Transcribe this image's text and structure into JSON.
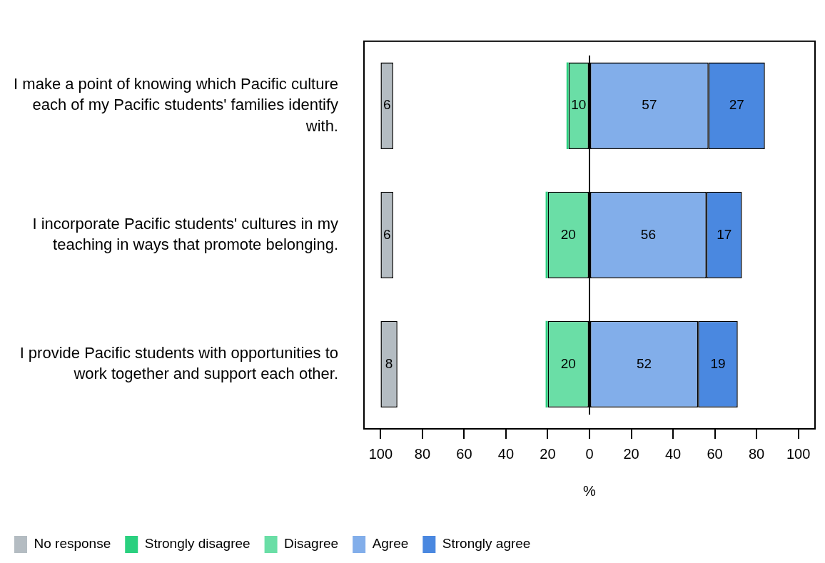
{
  "chart_data": {
    "type": "bar",
    "orientation": "horizontal",
    "categories": [
      "I make a point of knowing which Pacific culture each of my Pacific students' families identify with.",
      "I incorporate Pacific students' cultures in my teaching in ways that promote belonging.",
      "I provide Pacific students with opportunities to work together and support each other."
    ],
    "series": [
      {
        "name": "No response",
        "color": "#b4bcc2",
        "values": [
          6,
          6,
          8
        ],
        "base": [
          -100,
          -100,
          -100
        ],
        "value_labels": [
          "6",
          "6",
          "8"
        ]
      },
      {
        "name": "Strongly disagree",
        "color": "#2ad07f",
        "values": [
          1,
          1,
          1
        ],
        "base": [
          -11,
          -21,
          -21
        ],
        "value_labels": [
          null,
          null,
          null
        ]
      },
      {
        "name": "Disagree",
        "color": "#6adea6",
        "values": [
          10,
          20,
          20
        ],
        "base": [
          -10,
          -20,
          -20
        ],
        "value_labels": [
          "10",
          "20",
          "20"
        ]
      },
      {
        "name": "Agree",
        "color": "#82aeea",
        "values": [
          57,
          56,
          52
        ],
        "base": [
          0,
          0,
          0
        ],
        "value_labels": [
          "57",
          "56",
          "52"
        ]
      },
      {
        "name": "Strongly agree",
        "color": "#4a88e0",
        "values": [
          27,
          17,
          19
        ],
        "base": [
          57,
          56,
          52
        ],
        "value_labels": [
          "27",
          "17",
          "19"
        ]
      }
    ],
    "xlabel": "%",
    "xlim": [
      -108,
      108
    ],
    "xticks": [
      {
        "value": -100,
        "label": "100"
      },
      {
        "value": -80,
        "label": "80"
      },
      {
        "value": -60,
        "label": "60"
      },
      {
        "value": -40,
        "label": "40"
      },
      {
        "value": -20,
        "label": "20"
      },
      0,
      20,
      40,
      60,
      80,
      100
    ],
    "ref_lines": [
      {
        "axis": "x",
        "value": 0,
        "color": "#000000"
      }
    ],
    "grid": false,
    "legend": "bottom"
  }
}
